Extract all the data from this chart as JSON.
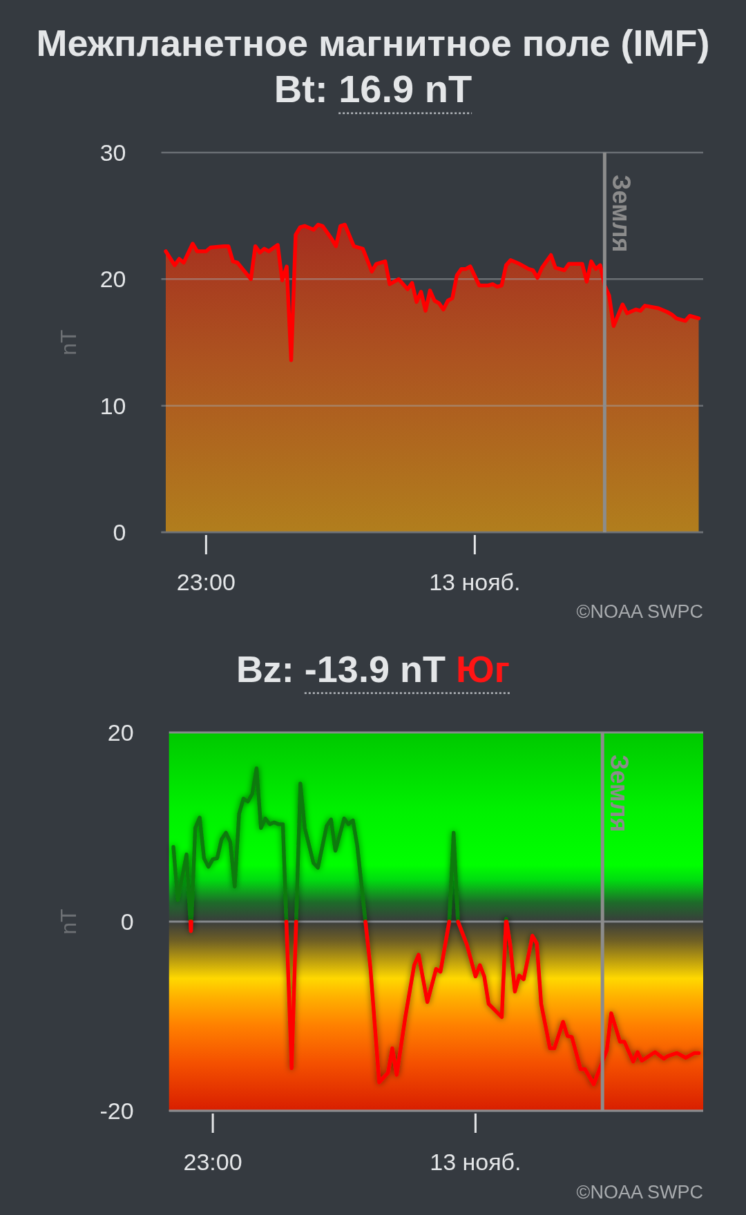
{
  "chart_data": [
    {
      "type": "area",
      "title": "Межпланетное магнитное поле (IMF)",
      "subtitle": "Bt: 16.9 nT",
      "ylabel": "nT",
      "x": [
        "--11-12T22:51",
        "--11-12T22:53",
        "--11-12T22:54",
        "--11-12T22:55",
        "--11-12T22:57",
        "--11-12T22:58",
        "--11-12T23:00",
        "--11-12T23:01",
        "--11-12T23:04",
        "--11-12T23:05",
        "--11-12T23:06",
        "--11-12T23:07",
        "--11-12T23:10",
        "--11-12T23:11",
        "--11-12T23:12",
        "--11-12T23:13",
        "--11-12T23:14",
        "--11-12T23:16",
        "--11-12T23:17",
        "--11-12T23:18",
        "--11-12T23:19",
        "--11-12T23:20",
        "--11-12T23:21",
        "--11-12T23:22",
        "--11-12T23:24",
        "--11-12T23:25",
        "--11-12T23:26",
        "--11-12T23:28",
        "--11-12T23:29",
        "--11-12T23:30",
        "--11-12T23:31",
        "--11-12T23:33",
        "--11-12T23:35",
        "--11-12T23:37",
        "--11-12T23:38",
        "--11-12T23:40",
        "--11-12T23:41",
        "--11-12T23:43",
        "--11-12T23:45",
        "--11-12T23:46",
        "--11-12T23:47",
        "--11-12T23:48",
        "--11-12T23:49",
        "--11-12T23:50",
        "--11-12T23:51",
        "--11-12T23:52",
        "--11-12T23:53",
        "--11-12T23:54",
        "--11-12T23:55",
        "--11-12T23:56",
        "--11-12T23:57",
        "--11-12T23:58",
        "--11-12T23:59",
        "--11-13T00:01",
        "--11-13T00:03",
        "--11-13T00:04",
        "--11-13T00:05",
        "--11-13T00:06",
        "--11-13T00:07",
        "--11-13T00:08",
        "--11-13T00:10",
        "--11-13T00:12",
        "--11-13T00:13",
        "--11-13T00:14",
        "--11-13T00:15",
        "--11-13T00:17",
        "--11-13T00:18",
        "--11-13T00:20",
        "--11-13T00:21",
        "--11-13T00:23",
        "--11-13T00:24",
        "--11-13T00:25",
        "--11-13T00:26",
        "--11-13T00:27",
        "--11-13T00:28",
        "--11-13T00:29",
        "--11-13T00:30",
        "--11-13T00:31",
        "--11-13T00:33",
        "--11-13T00:34",
        "--11-13T00:36",
        "--11-13T00:37",
        "--11-13T00:38",
        "--11-13T00:41",
        "--11-13T00:43",
        "--11-13T00:44",
        "--11-13T00:45",
        "--11-13T00:47",
        "--11-13T00:48",
        "--11-13T00:50"
      ],
      "series": [
        {
          "color": "#ff0000",
          "values": [
            22.2,
            21.1,
            21.6,
            21.3,
            22.8,
            22.2,
            22.2,
            22.5,
            22.6,
            22.6,
            21.4,
            21.3,
            20.0,
            22.6,
            22.1,
            22.4,
            22.2,
            22.7,
            19.9,
            21.0,
            13.6,
            23.5,
            24.1,
            24.2,
            23.9,
            24.3,
            24.2,
            23.2,
            22.6,
            24.2,
            24.3,
            22.6,
            22.4,
            20.6,
            21.2,
            21.4,
            19.6,
            20.0,
            19.2,
            19.7,
            18.2,
            19.0,
            17.5,
            19.1,
            18.3,
            18.1,
            17.6,
            18.3,
            18.5,
            20.3,
            20.8,
            20.8,
            21.0,
            19.5,
            19.5,
            19.6,
            19.4,
            19.5,
            21.1,
            21.5,
            21.2,
            20.8,
            20.7,
            20.1,
            20.9,
            21.9,
            20.9,
            20.7,
            21.2,
            21.2,
            21.2,
            19.8,
            21.4,
            20.8,
            21.1,
            19.5,
            18.7,
            16.3,
            18.0,
            17.3,
            17.6,
            17.5,
            17.9,
            17.7,
            17.4,
            17.2,
            16.9,
            16.7,
            17.1,
            16.9
          ]
        }
      ],
      "xlim": [
        "--11-12T22:50",
        "--11-13T00:51"
      ],
      "xticks": [
        {
          "value": "--11-12T23:00",
          "label": "23:00"
        },
        {
          "value": "--11-13",
          "label": "13 нояб."
        }
      ],
      "ylim": [
        0,
        30
      ],
      "yticks": [
        0,
        10,
        20,
        30
      ],
      "grid": "y",
      "ref_lines": [
        {
          "axis": "x",
          "value": "--11-13T00:29",
          "label": "Земля",
          "color": "#8c8c8c"
        }
      ],
      "annotations": [
        "©NOAA SWPC"
      ]
    },
    {
      "type": "line",
      "title": "Bz: -13.9 nT Юг",
      "ylabel": "nT",
      "x": [
        "--11-12T22:51",
        "--11-12T22:52",
        "--11-12T22:54",
        "--11-12T22:54:53",
        "--11-12T22:55",
        "--11-12T22:55:06",
        "--11-12T22:56",
        "--11-12T22:57",
        "--11-12T22:58",
        "--11-12T22:59",
        "--11-12T23:00",
        "--11-12T23:01",
        "--11-12T23:02",
        "--11-12T23:03",
        "--11-12T23:04",
        "--11-12T23:05",
        "--11-12T23:06",
        "--11-12T23:07",
        "--11-12T23:08",
        "--11-12T23:09",
        "--11-12T23:10",
        "--11-12T23:11",
        "--11-12T23:12",
        "--11-12T23:13",
        "--11-12T23:14",
        "--11-12T23:15",
        "--11-12T23:16",
        "--11-12T23:16:48",
        "--11-12T23:18",
        "--11-12T23:19:02",
        "--11-12T23:20",
        "--11-12T23:21",
        "--11-12T23:23",
        "--11-12T23:24",
        "--11-12T23:26",
        "--11-12T23:27",
        "--11-12T23:28",
        "--11-12T23:30",
        "--11-12T23:31",
        "--11-12T23:32",
        "--11-12T23:33",
        "--11-12T23:34:52",
        "--11-12T23:36",
        "--11-12T23:38",
        "--11-12T23:40",
        "--11-12T23:41",
        "--11-12T23:42",
        "--11-12T23:44",
        "--11-12T23:46",
        "--11-12T23:47",
        "--11-12T23:49",
        "--11-12T23:51",
        "--11-12T23:52",
        "--11-12T23:54",
        "--11-12T23:55",
        "--11-12T23:56",
        "--11-12T23:58",
        "--11-13T00:00",
        "--11-13T00:01",
        "--11-13T00:02",
        "--11-13T00:03",
        "--11-13T00:06",
        "--11-13T00:06:58",
        "--11-13T00:07",
        "--11-13T00:07:06",
        "--11-13T00:08",
        "--11-13T00:09",
        "--11-13T00:10",
        "--11-13T00:11",
        "--11-13T00:13",
        "--11-13T00:14",
        "--11-13T00:15",
        "--11-13T00:17",
        "--11-13T00:18",
        "--11-13T00:20",
        "--11-13T00:21",
        "--11-13T00:22",
        "--11-13T00:24",
        "--11-13T00:25",
        "--11-13T00:27",
        "--11-13T00:30",
        "--11-13T00:31",
        "--11-13T00:33",
        "--11-13T00:34",
        "--11-13T00:36",
        "--11-13T00:37",
        "--11-13T00:38",
        "--11-13T00:41",
        "--11-13T00:43",
        "--11-13T00:44",
        "--11-13T00:46",
        "--11-13T00:48",
        "--11-13T00:50",
        "--11-13T00:51"
      ],
      "series": [
        {
          "color": "#0b7a0b",
          "values": [
            7.9,
            2.3,
            7.1,
            0,
            null,
            0,
            9.9,
            11.0,
            6.7,
            5.8,
            6.6,
            6.7,
            8.7,
            9.4,
            8.4,
            3.7,
            11.4,
            13.0,
            12.7,
            13.5,
            16.2,
            9.9,
            10.9,
            10.3,
            10.5,
            10.3,
            10.3,
            0,
            null,
            0,
            14.6,
            9.9,
            6.2,
            5.7,
            10.1,
            10.8,
            7.5,
            10.9,
            10.3,
            10.7,
            8.0,
            0,
            null,
            null,
            null,
            null,
            null,
            null,
            null,
            null,
            null,
            null,
            null,
            0,
            9.4,
            0,
            null,
            null,
            null,
            null,
            null,
            null,
            0,
            0.3,
            0,
            null,
            null,
            null,
            null,
            null,
            null,
            null,
            null,
            null,
            null,
            null,
            null,
            null,
            null,
            null,
            null,
            null,
            null,
            null,
            null,
            null,
            null,
            null,
            null,
            null,
            null,
            null,
            null,
            null
          ]
        },
        {
          "color": "#ff0000",
          "values": [
            null,
            null,
            null,
            0,
            -1.0,
            0,
            null,
            null,
            null,
            null,
            null,
            null,
            null,
            null,
            null,
            null,
            null,
            null,
            null,
            null,
            null,
            null,
            null,
            null,
            null,
            null,
            null,
            0,
            -15.5,
            0,
            null,
            null,
            null,
            null,
            null,
            null,
            null,
            null,
            null,
            null,
            null,
            0,
            -4.9,
            -17.0,
            -16.0,
            -13.4,
            -16.2,
            -10.0,
            -4.6,
            -3.5,
            -8.5,
            -5.0,
            -5.3,
            0,
            null,
            0,
            -2.4,
            -5.8,
            -4.6,
            -5.8,
            -8.7,
            -10.1,
            0,
            null,
            0,
            -2.7,
            -7.4,
            -5.7,
            -6.1,
            -1.5,
            -2.3,
            -8.7,
            -13.4,
            -13.4,
            -10.6,
            -12.1,
            -12.2,
            -15.6,
            -15.6,
            -17.2,
            -13.6,
            -9.7,
            -12.7,
            -12.7,
            -14.8,
            -13.8,
            -14.7,
            -13.8,
            -14.5,
            -14.2,
            -13.9,
            -14.4,
            -13.9,
            -13.9
          ]
        }
      ],
      "xlim": [
        "--11-12T22:50",
        "--11-13T00:52"
      ],
      "xticks": [
        {
          "value": "--11-12T23:00",
          "label": "23:00"
        },
        {
          "value": "--11-13",
          "label": "13 нояб."
        }
      ],
      "ylim": [
        -20,
        20
      ],
      "yticks": [
        -20,
        0,
        20
      ],
      "grid": "y",
      "ref_lines": [
        {
          "axis": "x",
          "value": "--11-13T00:29",
          "label": "Земля",
          "color": "#8c8c8c"
        }
      ],
      "annotations": [
        "©NOAA SWPC"
      ]
    }
  ]
}
